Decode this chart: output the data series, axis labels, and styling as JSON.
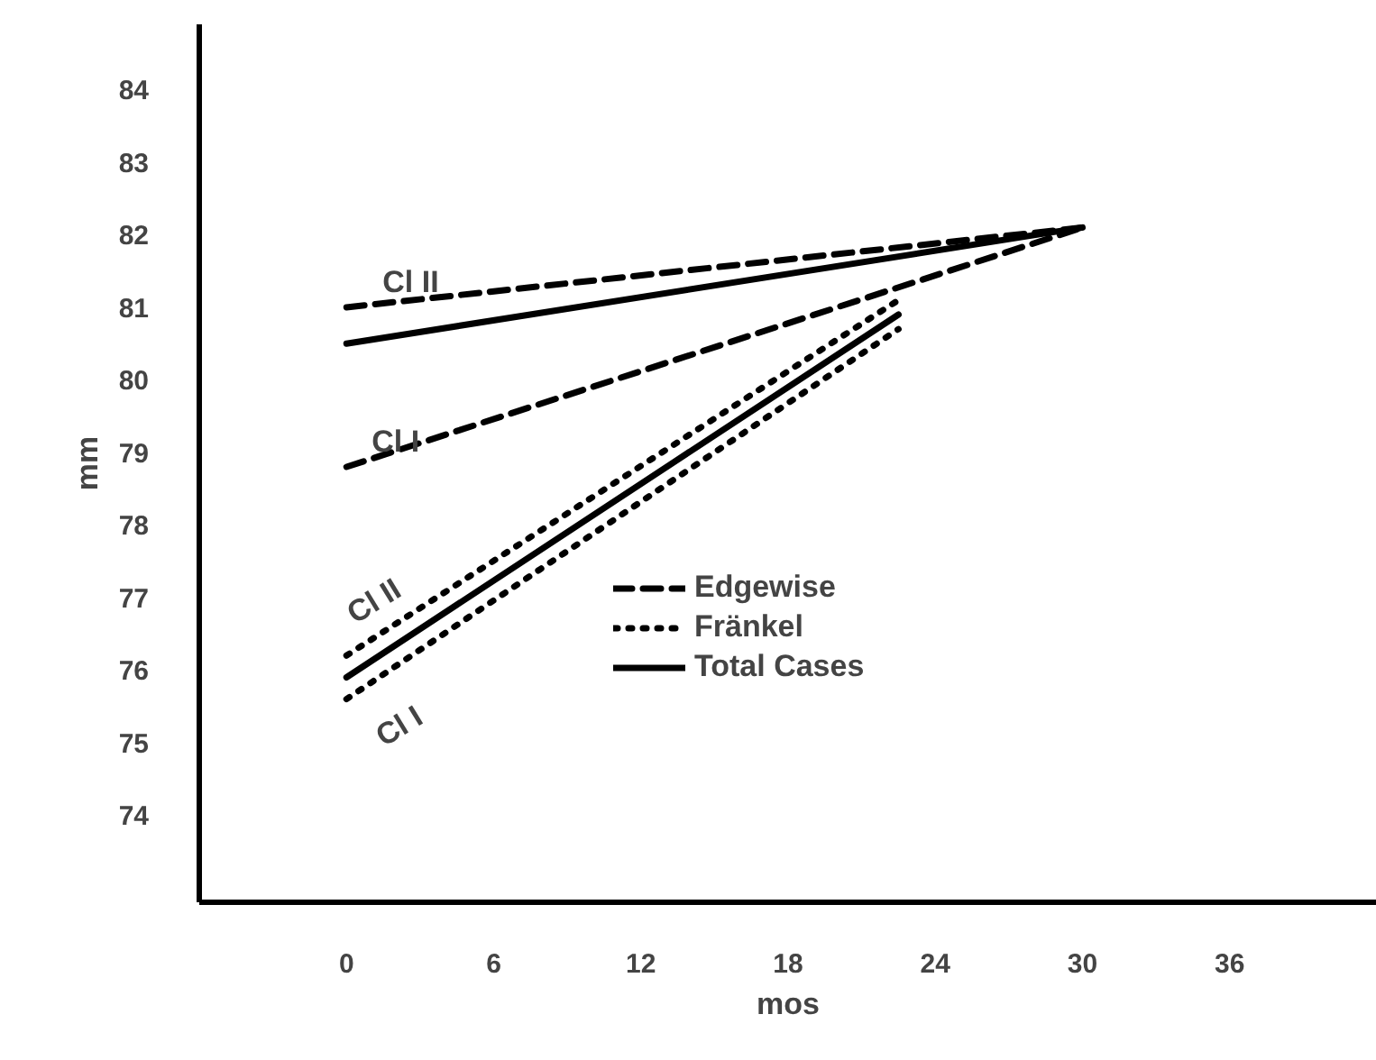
{
  "chart_data": {
    "type": "line",
    "xlabel": "mos",
    "ylabel": "mm",
    "xlim": [
      -6,
      42
    ],
    "ylim": [
      72.8,
      84.9
    ],
    "xticks": [
      0,
      6,
      12,
      18,
      24,
      30,
      36
    ],
    "yticks": [
      74,
      75,
      76,
      77,
      78,
      79,
      80,
      81,
      82,
      83,
      84
    ],
    "series": [
      {
        "name": "Edgewise",
        "color": "#000000",
        "line_style": "dashed",
        "x": [
          0,
          30
        ],
        "values": [
          81.0,
          82.1
        ]
      },
      {
        "color": "#000000",
        "line_style": "dashed",
        "x": [
          0,
          30
        ],
        "values": [
          78.8,
          82.1
        ]
      },
      {
        "name": "Fränkel",
        "color": "#000000",
        "line_style": "dotted",
        "x": [
          0,
          22.5
        ],
        "values": [
          76.2,
          81.1
        ]
      },
      {
        "color": "#000000",
        "line_style": "dotted",
        "x": [
          0,
          22.5
        ],
        "values": [
          75.6,
          80.7
        ]
      },
      {
        "name": "Total Cases",
        "color": "#000000",
        "line_style": "solid",
        "x": [
          0,
          30
        ],
        "values": [
          80.5,
          82.1
        ]
      },
      {
        "color": "#000000",
        "line_style": "solid",
        "x": [
          0,
          22.5
        ],
        "values": [
          75.9,
          80.9
        ]
      }
    ],
    "annotations": [
      "Cl II",
      "Cl I",
      "Cl II",
      "Cl I"
    ],
    "grid": false,
    "legend": "bottom right",
    "marker": "none"
  }
}
